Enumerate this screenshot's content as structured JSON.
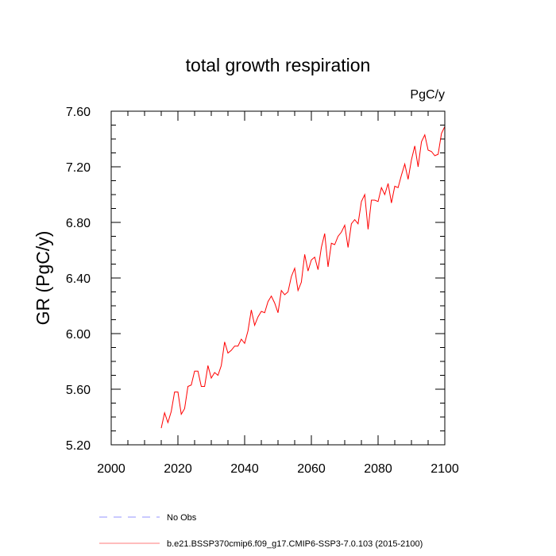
{
  "chart_data": {
    "type": "line",
    "title": "total growth respiration",
    "units": "PgC/y",
    "ylabel": "GR  (PgC/y)",
    "xlabel": "",
    "xlim": [
      2000,
      2100
    ],
    "ylim": [
      5.2,
      7.6
    ],
    "xticks": [
      2000,
      2020,
      2040,
      2060,
      2080,
      2100
    ],
    "xtick_labels": [
      "2000",
      "2020",
      "2040",
      "2060",
      "2080",
      "2100"
    ],
    "yticks": [
      5.2,
      5.6,
      6.0,
      6.4,
      6.8,
      7.2,
      7.6
    ],
    "ytick_labels": [
      "5.20",
      "5.60",
      "6.00",
      "6.40",
      "6.80",
      "7.20",
      "7.60"
    ],
    "grid": false,
    "legend_position": "bottom",
    "series": [
      {
        "name": "b.e21.BSSP370cmip6.f09_g17.CMIP6-SSP3-7.0.103 (2015-2100)",
        "color": "#ff0000",
        "style": "solid",
        "x": [
          2015,
          2016,
          2017,
          2018,
          2019,
          2020,
          2021,
          2022,
          2023,
          2024,
          2025,
          2026,
          2027,
          2028,
          2029,
          2030,
          2031,
          2032,
          2033,
          2034,
          2035,
          2036,
          2037,
          2038,
          2039,
          2040,
          2041,
          2042,
          2043,
          2044,
          2045,
          2046,
          2047,
          2048,
          2049,
          2050,
          2051,
          2052,
          2053,
          2054,
          2055,
          2056,
          2057,
          2058,
          2059,
          2060,
          2061,
          2062,
          2063,
          2064,
          2065,
          2066,
          2067,
          2068,
          2069,
          2070,
          2071,
          2072,
          2073,
          2074,
          2075,
          2076,
          2077,
          2078,
          2079,
          2080,
          2081,
          2082,
          2083,
          2084,
          2085,
          2086,
          2087,
          2088,
          2089,
          2090,
          2091,
          2092,
          2093,
          2094,
          2095,
          2096,
          2097,
          2098,
          2099,
          2100
        ],
        "y": [
          5.32,
          5.43,
          5.36,
          5.44,
          5.58,
          5.58,
          5.42,
          5.46,
          5.62,
          5.63,
          5.73,
          5.73,
          5.62,
          5.62,
          5.77,
          5.68,
          5.72,
          5.7,
          5.77,
          5.94,
          5.86,
          5.88,
          5.91,
          5.91,
          5.96,
          5.93,
          6.02,
          6.17,
          6.06,
          6.12,
          6.16,
          6.15,
          6.23,
          6.27,
          6.22,
          6.15,
          6.31,
          6.28,
          6.3,
          6.41,
          6.47,
          6.31,
          6.37,
          6.57,
          6.45,
          6.53,
          6.55,
          6.46,
          6.62,
          6.72,
          6.48,
          6.65,
          6.64,
          6.7,
          6.73,
          6.78,
          6.62,
          6.79,
          6.82,
          6.79,
          6.95,
          7.0,
          6.75,
          6.96,
          6.96,
          6.95,
          7.05,
          7.0,
          7.08,
          6.94,
          7.06,
          7.05,
          7.14,
          7.22,
          7.11,
          7.25,
          7.35,
          7.2,
          7.38,
          7.43,
          7.32,
          7.31,
          7.28,
          7.29,
          7.44,
          7.49
        ]
      },
      {
        "name": "No Obs",
        "color": "#0000ff",
        "style": "dashed",
        "x": [],
        "y": []
      }
    ]
  }
}
